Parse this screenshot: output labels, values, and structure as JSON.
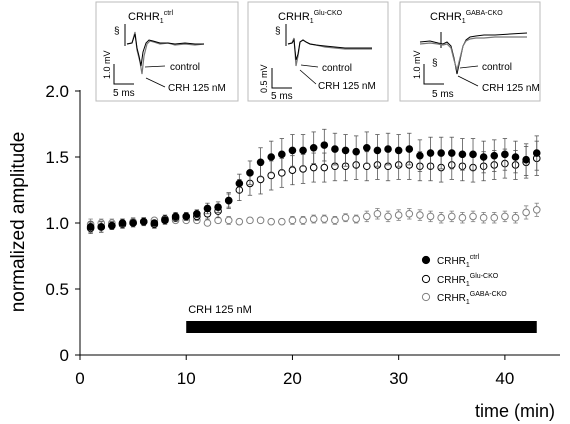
{
  "chart_data": {
    "type": "scatter",
    "xlabel": "time (min)",
    "ylabel": "normalized amplitude",
    "xlim": [
      0,
      45
    ],
    "ylim": [
      0,
      2.0
    ],
    "x_ticks": [
      "0",
      "10",
      "20",
      "30",
      "40"
    ],
    "y_ticks": [
      "0",
      "0.5",
      "1.0",
      "1.5",
      "2.0"
    ],
    "grid": false,
    "legend_position": "right",
    "bar_annotation": {
      "label": "CRH 125 nM",
      "start": 10,
      "end": 43
    },
    "series": [
      {
        "name": "CRHR1ctrl",
        "legend_base": "CRHR",
        "legend_sub": "1",
        "legend_sup": "ctrl",
        "marker": "filled",
        "color": "#000000",
        "points": [
          [
            1,
            0.97,
            0.04
          ],
          [
            2,
            0.97,
            0.04
          ],
          [
            3,
            0.98,
            0.03
          ],
          [
            4,
            1.0,
            0.03
          ],
          [
            5,
            1.0,
            0.02
          ],
          [
            6,
            1.01,
            0.03
          ],
          [
            7,
            1.0,
            0.02
          ],
          [
            8,
            1.02,
            0.03
          ],
          [
            9,
            1.05,
            0.03
          ],
          [
            10,
            1.05,
            0.03
          ],
          [
            11,
            1.07,
            0.03
          ],
          [
            12,
            1.11,
            0.04
          ],
          [
            13,
            1.12,
            0.04
          ],
          [
            14,
            1.17,
            0.05
          ],
          [
            15,
            1.3,
            0.07
          ],
          [
            16,
            1.38,
            0.09
          ],
          [
            17,
            1.46,
            0.11
          ],
          [
            18,
            1.5,
            0.12
          ],
          [
            19,
            1.52,
            0.12
          ],
          [
            20,
            1.55,
            0.12
          ],
          [
            21,
            1.55,
            0.12
          ],
          [
            22,
            1.57,
            0.12
          ],
          [
            23,
            1.59,
            0.12
          ],
          [
            24,
            1.56,
            0.12
          ],
          [
            25,
            1.55,
            0.12
          ],
          [
            26,
            1.54,
            0.12
          ],
          [
            27,
            1.57,
            0.12
          ],
          [
            28,
            1.55,
            0.12
          ],
          [
            29,
            1.56,
            0.12
          ],
          [
            30,
            1.55,
            0.12
          ],
          [
            31,
            1.56,
            0.12
          ],
          [
            32,
            1.51,
            0.12
          ],
          [
            33,
            1.53,
            0.12
          ],
          [
            34,
            1.53,
            0.12
          ],
          [
            35,
            1.53,
            0.12
          ],
          [
            36,
            1.52,
            0.12
          ],
          [
            37,
            1.52,
            0.12
          ],
          [
            38,
            1.5,
            0.12
          ],
          [
            39,
            1.51,
            0.12
          ],
          [
            40,
            1.52,
            0.12
          ],
          [
            41,
            1.5,
            0.12
          ],
          [
            42,
            1.48,
            0.12
          ],
          [
            43,
            1.53,
            0.13
          ]
        ]
      },
      {
        "name": "CRHR1Glu-CKO",
        "legend_base": "CRHR",
        "legend_sub": "1",
        "legend_sup": "Glu-CKO",
        "marker": "open",
        "color": "#000000",
        "points": [
          [
            1,
            0.96,
            0.04
          ],
          [
            2,
            0.97,
            0.04
          ],
          [
            3,
            0.98,
            0.03
          ],
          [
            4,
            0.99,
            0.03
          ],
          [
            5,
            1.0,
            0.03
          ],
          [
            6,
            1.01,
            0.03
          ],
          [
            7,
            0.99,
            0.03
          ],
          [
            8,
            1.03,
            0.03
          ],
          [
            9,
            1.04,
            0.03
          ],
          [
            10,
            1.05,
            0.03
          ],
          [
            11,
            1.05,
            0.03
          ],
          [
            12,
            1.07,
            0.04
          ],
          [
            13,
            1.09,
            0.05
          ],
          [
            14,
            1.17,
            0.06
          ],
          [
            15,
            1.25,
            0.08
          ],
          [
            16,
            1.3,
            0.09
          ],
          [
            17,
            1.33,
            0.11
          ],
          [
            18,
            1.36,
            0.11
          ],
          [
            19,
            1.38,
            0.11
          ],
          [
            20,
            1.4,
            0.11
          ],
          [
            21,
            1.41,
            0.11
          ],
          [
            22,
            1.42,
            0.11
          ],
          [
            23,
            1.42,
            0.11
          ],
          [
            24,
            1.43,
            0.11
          ],
          [
            25,
            1.43,
            0.11
          ],
          [
            26,
            1.44,
            0.11
          ],
          [
            27,
            1.43,
            0.11
          ],
          [
            28,
            1.44,
            0.11
          ],
          [
            29,
            1.43,
            0.11
          ],
          [
            30,
            1.44,
            0.11
          ],
          [
            31,
            1.44,
            0.11
          ],
          [
            32,
            1.43,
            0.11
          ],
          [
            33,
            1.43,
            0.11
          ],
          [
            34,
            1.42,
            0.11
          ],
          [
            35,
            1.44,
            0.11
          ],
          [
            36,
            1.43,
            0.11
          ],
          [
            37,
            1.42,
            0.11
          ],
          [
            38,
            1.43,
            0.11
          ],
          [
            39,
            1.44,
            0.11
          ],
          [
            40,
            1.45,
            0.11
          ],
          [
            41,
            1.44,
            0.11
          ],
          [
            42,
            1.46,
            0.12
          ],
          [
            43,
            1.49,
            0.13
          ]
        ]
      },
      {
        "name": "CRHR1GABA-CKO",
        "legend_base": "CRHR",
        "legend_sub": "1",
        "legend_sup": "GABA-CKO",
        "marker": "open",
        "color": "#808080",
        "points": [
          [
            1,
            0.99,
            0.04
          ],
          [
            2,
            1.0,
            0.03
          ],
          [
            3,
            1.0,
            0.03
          ],
          [
            4,
            1.0,
            0.03
          ],
          [
            5,
            1.01,
            0.03
          ],
          [
            6,
            1.01,
            0.02
          ],
          [
            7,
            1.02,
            0.02
          ],
          [
            8,
            1.02,
            0.02
          ],
          [
            9,
            1.02,
            0.02
          ],
          [
            10,
            1.02,
            0.02
          ],
          [
            11,
            1.02,
            0.02
          ],
          [
            12,
            1.0,
            0.02
          ],
          [
            13,
            1.02,
            0.02
          ],
          [
            14,
            1.02,
            0.03
          ],
          [
            15,
            1.01,
            0.02
          ],
          [
            16,
            1.02,
            0.02
          ],
          [
            17,
            1.02,
            0.02
          ],
          [
            18,
            1.01,
            0.02
          ],
          [
            19,
            1.01,
            0.02
          ],
          [
            20,
            1.02,
            0.03
          ],
          [
            21,
            1.02,
            0.03
          ],
          [
            22,
            1.03,
            0.03
          ],
          [
            23,
            1.03,
            0.03
          ],
          [
            24,
            1.02,
            0.03
          ],
          [
            25,
            1.04,
            0.03
          ],
          [
            26,
            1.03,
            0.03
          ],
          [
            27,
            1.05,
            0.04
          ],
          [
            28,
            1.07,
            0.04
          ],
          [
            29,
            1.05,
            0.04
          ],
          [
            30,
            1.06,
            0.04
          ],
          [
            31,
            1.07,
            0.04
          ],
          [
            32,
            1.06,
            0.04
          ],
          [
            33,
            1.05,
            0.04
          ],
          [
            34,
            1.04,
            0.04
          ],
          [
            35,
            1.05,
            0.04
          ],
          [
            36,
            1.04,
            0.04
          ],
          [
            37,
            1.05,
            0.04
          ],
          [
            38,
            1.04,
            0.04
          ],
          [
            39,
            1.04,
            0.04
          ],
          [
            40,
            1.05,
            0.04
          ],
          [
            41,
            1.04,
            0.04
          ],
          [
            42,
            1.08,
            0.05
          ],
          [
            43,
            1.1,
            0.05
          ]
        ]
      }
    ]
  },
  "insets": [
    {
      "label_base": "CRHR",
      "label_sub": "1",
      "label_sup": "ctrl",
      "section_mark": "§",
      "scale_v": "1.0 mV",
      "scale_t": "5 ms",
      "trace_label_control": "control",
      "trace_label_crh": "CRH 125 nM"
    },
    {
      "label_base": "CRHR",
      "label_sub": "1",
      "label_sup": "Glu-CKO",
      "section_mark": "§",
      "scale_v": "0.5 mV",
      "scale_t": "5 ms",
      "trace_label_control": "control",
      "trace_label_crh": "CRH 125 nM"
    },
    {
      "label_base": "CRHR",
      "label_sub": "1",
      "label_sup": "GABA-CKO",
      "section_mark": "§",
      "scale_v": "1.0 mV",
      "scale_t": "5 ms",
      "trace_label_control": "control",
      "trace_label_crh": "CRH 125 nM"
    }
  ]
}
